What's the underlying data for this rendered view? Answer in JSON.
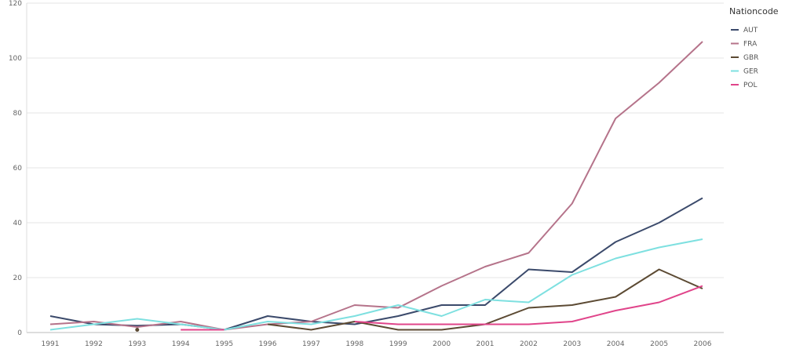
{
  "chart_data": {
    "type": "line",
    "x": [
      "1991",
      "1992",
      "1993",
      "1994",
      "1995",
      "1996",
      "1997",
      "1998",
      "1999",
      "2000",
      "2001",
      "2002",
      "2003",
      "2004",
      "2005",
      "2006"
    ],
    "ylim": [
      0,
      120
    ],
    "yticks": [
      0,
      20,
      40,
      60,
      80,
      100,
      120
    ],
    "grid": true,
    "legend_title": "Nationcode",
    "legend_position": "top-right",
    "series": [
      {
        "name": "AUT",
        "color": "#3b4a6b",
        "values": [
          6,
          3,
          2.5,
          3,
          1,
          6,
          4,
          3,
          6,
          10,
          10,
          23,
          22,
          33,
          40,
          49
        ]
      },
      {
        "name": "FRA",
        "color": "#b5738a",
        "values": [
          3,
          4,
          2,
          4,
          1,
          3,
          4,
          10,
          9,
          17,
          24,
          29,
          47,
          78,
          91,
          106
        ]
      },
      {
        "name": "GBR",
        "color": "#5c4a33",
        "values": [
          null,
          null,
          1,
          null,
          null,
          3,
          1,
          4,
          1,
          1,
          3,
          9,
          10,
          13,
          23,
          16
        ]
      },
      {
        "name": "GER",
        "color": "#7ee0e0",
        "values": [
          1,
          3,
          5,
          3,
          1,
          4,
          3,
          6,
          10,
          6,
          12,
          11,
          21,
          27,
          31,
          34
        ]
      },
      {
        "name": "POL",
        "color": "#e0448a",
        "values": [
          null,
          null,
          null,
          1,
          1,
          null,
          null,
          4,
          3,
          3,
          3,
          3,
          4,
          8,
          11,
          17
        ]
      }
    ]
  }
}
